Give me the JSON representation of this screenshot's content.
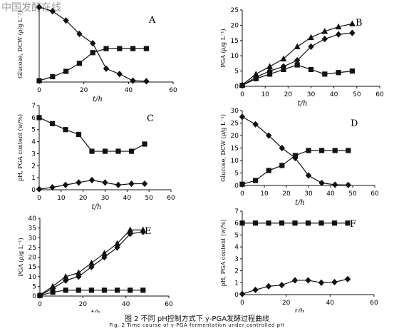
{
  "watermark": "中国发酵在线",
  "caption_cn": "图 2  不同 pH控制方式下 γ-PGA发酵过程曲线",
  "caption_en": "Fig. 2   Time course of γ-PGA fermentation under controlled pH",
  "chart_data": [
    {
      "panel": "A",
      "type": "line",
      "xlabel": "t/h",
      "ylabel": "Glucose, DCW (ρ/g L⁻¹)",
      "xlim": [
        0,
        60
      ],
      "ylim": [
        0,
        28
      ],
      "xticks": [
        0,
        20,
        40,
        60
      ],
      "yticks": [],
      "series": [
        {
          "marker": "diamond",
          "x": [
            0,
            6,
            12,
            18,
            24,
            30,
            36,
            42,
            48
          ],
          "y": [
            28,
            26.5,
            23,
            18,
            14.5,
            5,
            3,
            0.5,
            0.3
          ]
        },
        {
          "marker": "square",
          "x": [
            0,
            6,
            12,
            18,
            24,
            30,
            36,
            42,
            48
          ],
          "y": [
            0.5,
            2,
            4,
            7,
            11,
            12.5,
            12.5,
            12.5,
            12.5
          ]
        }
      ]
    },
    {
      "panel": "B",
      "type": "line",
      "xlabel": "t/h",
      "ylabel": "PGA (ρ/g L⁻¹)",
      "xlim": [
        0,
        60
      ],
      "ylim": [
        0,
        25
      ],
      "xticks": [
        0,
        10,
        20,
        30,
        40,
        50,
        60
      ],
      "yticks": [
        0,
        5,
        10,
        15,
        20,
        25
      ],
      "series": [
        {
          "marker": "triangle",
          "x": [
            0,
            6,
            12,
            18,
            24,
            30,
            36,
            42,
            48
          ],
          "y": [
            0.5,
            4,
            6.5,
            9,
            13,
            16,
            18,
            19.5,
            20.5
          ]
        },
        {
          "marker": "diamond",
          "x": [
            0,
            6,
            12,
            18,
            24,
            30,
            36,
            42,
            48
          ],
          "y": [
            0.3,
            3,
            5,
            6.5,
            8.5,
            13,
            15.5,
            17,
            17.5
          ]
        },
        {
          "marker": "square",
          "x": [
            0,
            6,
            12,
            18,
            24,
            30,
            36,
            42,
            48
          ],
          "y": [
            0.3,
            2.5,
            4,
            5.5,
            7,
            5.5,
            4,
            4.5,
            5
          ]
        }
      ]
    },
    {
      "panel": "C",
      "type": "line",
      "xlabel": "t/h",
      "ylabel": "pH, PGA content (w/%)",
      "xlim": [
        0,
        60
      ],
      "ylim": [
        0,
        7
      ],
      "xticks": [
        0,
        10,
        20,
        30,
        40,
        50,
        60
      ],
      "yticks": [
        0,
        1,
        2,
        3,
        4,
        5,
        6,
        7
      ],
      "series": [
        {
          "marker": "square",
          "x": [
            0,
            6,
            12,
            18,
            24,
            30,
            36,
            42,
            48
          ],
          "y": [
            6,
            5.5,
            5,
            4.6,
            3.2,
            3.2,
            3.2,
            3.2,
            3.8
          ]
        },
        {
          "marker": "diamond",
          "x": [
            0,
            6,
            12,
            18,
            24,
            30,
            36,
            42,
            48
          ],
          "y": [
            0.05,
            0.2,
            0.4,
            0.6,
            0.8,
            0.6,
            0.4,
            0.5,
            0.5
          ]
        }
      ]
    },
    {
      "panel": "D",
      "type": "line",
      "xlabel": "t/h",
      "ylabel": "Glucose, DCW (ρ/g L⁻¹)",
      "xlim": [
        0,
        60
      ],
      "ylim": [
        0,
        30
      ],
      "xticks": [
        0,
        10,
        20,
        30,
        40,
        50,
        60
      ],
      "yticks": [
        0,
        5,
        10,
        15,
        20,
        25,
        30
      ],
      "series": [
        {
          "marker": "diamond",
          "x": [
            0,
            6,
            12,
            18,
            24,
            30,
            36,
            42,
            48
          ],
          "y": [
            27.5,
            24.5,
            20,
            15,
            11,
            4,
            1,
            0.3,
            0.2
          ]
        },
        {
          "marker": "square",
          "x": [
            0,
            6,
            12,
            18,
            24,
            30,
            36,
            42,
            48
          ],
          "y": [
            0.5,
            2,
            6,
            8,
            12,
            14,
            14,
            14,
            14
          ]
        }
      ]
    },
    {
      "panel": "E",
      "type": "line",
      "xlabel": "t/h",
      "ylabel": "PGA (ρ/g L⁻¹)",
      "xlim": [
        0,
        60
      ],
      "ylim": [
        0,
        40
      ],
      "xticks": [
        0,
        20,
        40,
        60
      ],
      "yticks": [
        0,
        5,
        10,
        15,
        20,
        25,
        30,
        35,
        40
      ],
      "series": [
        {
          "marker": "triangle",
          "x": [
            0,
            6,
            12,
            18,
            24,
            30,
            36,
            42,
            48
          ],
          "y": [
            0.5,
            5,
            10,
            12,
            17,
            22,
            27,
            34,
            34
          ]
        },
        {
          "marker": "diamond",
          "x": [
            0,
            6,
            12,
            18,
            24,
            30,
            36,
            42,
            48
          ],
          "y": [
            0.3,
            4,
            8,
            10,
            15,
            20,
            25,
            32,
            33
          ]
        },
        {
          "marker": "square",
          "x": [
            0,
            6,
            12,
            18,
            24,
            30,
            36,
            42,
            48
          ],
          "y": [
            0.3,
            2,
            3,
            3,
            3,
            3,
            3,
            3,
            3
          ]
        }
      ]
    },
    {
      "panel": "F",
      "type": "line",
      "xlabel": "t/h",
      "ylabel": "pH, PGA content (w/%)",
      "xlim": [
        0,
        60
      ],
      "ylim": [
        0,
        7
      ],
      "xticks": [
        0,
        20,
        40,
        60
      ],
      "yticks": [
        0,
        1,
        2,
        3,
        4,
        5,
        6,
        7
      ],
      "series": [
        {
          "marker": "square",
          "x": [
            0,
            6,
            12,
            18,
            24,
            30,
            36,
            42,
            48
          ],
          "y": [
            6,
            6,
            6,
            6,
            6,
            6,
            6,
            6,
            6
          ]
        },
        {
          "marker": "diamond",
          "x": [
            0,
            6,
            12,
            18,
            24,
            30,
            36,
            42,
            48
          ],
          "y": [
            0.05,
            0.4,
            0.7,
            0.8,
            1.2,
            1.2,
            1,
            1.05,
            1.3
          ]
        }
      ]
    }
  ]
}
